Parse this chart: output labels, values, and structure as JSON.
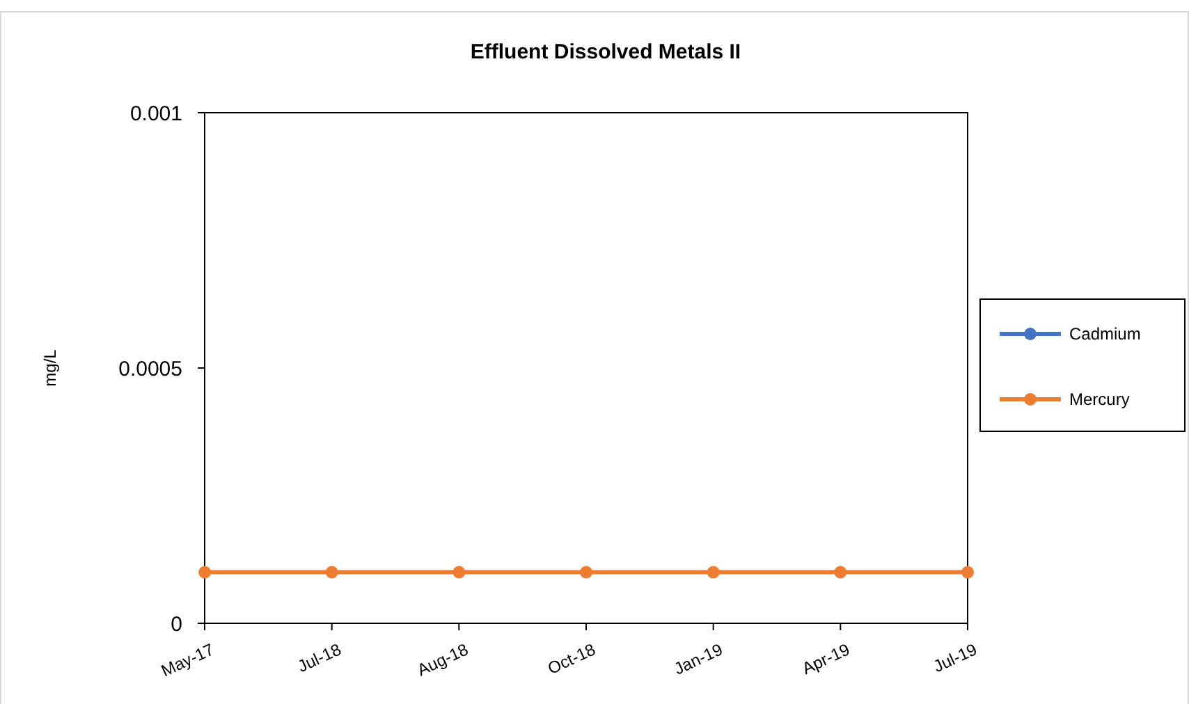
{
  "chart_data": {
    "type": "line",
    "title": "Effluent Dissolved  Metals II",
    "ylabel": "mg/L",
    "categories": [
      "May-17",
      "Jul-18",
      "Aug-18",
      "Oct-18",
      "Jan-19",
      "Apr-19",
      "Jul-19"
    ],
    "series": [
      {
        "name": "Cadmium",
        "color": "#4472c4",
        "values": [
          null,
          null,
          null,
          null,
          null,
          null,
          null
        ]
      },
      {
        "name": "Mercury",
        "color": "#ed7d31",
        "values": [
          0.0001,
          0.0001,
          0.0001,
          0.0001,
          0.0001,
          0.0001,
          0.0001
        ]
      }
    ],
    "ylim": [
      0,
      0.001
    ],
    "yticks": [
      0,
      0.0005,
      0.001
    ],
    "grid": false,
    "legend": "right",
    "marker": "circle",
    "line_style": "solid"
  }
}
